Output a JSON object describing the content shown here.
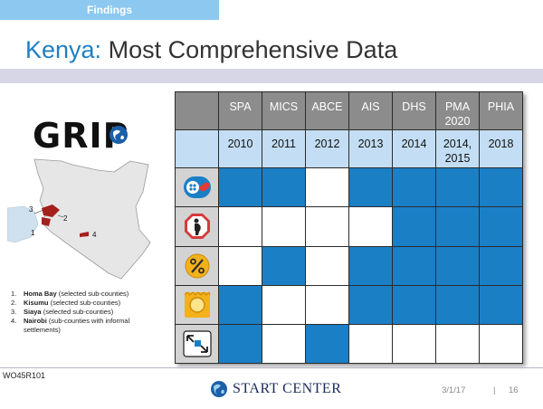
{
  "header": {
    "tag": "Findings",
    "title_country": "Kenya:",
    "title_rest": "Most Comprehensive Data"
  },
  "logo": {
    "text": "GRIP",
    "icon": "globe-icon"
  },
  "map": {
    "labels": [
      "3",
      "2",
      "1",
      "4"
    ]
  },
  "legend": [
    {
      "num": "1.",
      "bold": "Homa Bay",
      "rest": " (selected sub-counties)"
    },
    {
      "num": "2.",
      "bold": "Kisumu",
      "rest": " (selected sub-counties)"
    },
    {
      "num": "3.",
      "bold": "Siaya",
      "rest": " (selected sub-counties)"
    },
    {
      "num": "4.",
      "bold": "Nairobi",
      "rest": " (sub-counties with informal settlements)"
    }
  ],
  "table": {
    "surveys": [
      {
        "line1": "SPA",
        "line2": ""
      },
      {
        "line1": "MICS",
        "line2": ""
      },
      {
        "line1": "ABCE",
        "line2": ""
      },
      {
        "line1": "AIS",
        "line2": ""
      },
      {
        "line1": "DHS",
        "line2": ""
      },
      {
        "line1": "PMA",
        "line2": "2020"
      },
      {
        "line1": "PHIA",
        "line2": ""
      }
    ],
    "years": [
      {
        "line1": "2010",
        "line2": ""
      },
      {
        "line1": "2011",
        "line2": ""
      },
      {
        "line1": "2012",
        "line2": ""
      },
      {
        "line1": "2013",
        "line2": ""
      },
      {
        "line1": "2014",
        "line2": ""
      },
      {
        "line1": "2014,",
        "line2": "2015"
      },
      {
        "line1": "2018",
        "line2": ""
      }
    ],
    "rows": [
      {
        "icon": "pills-icon",
        "cells": [
          true,
          true,
          false,
          true,
          true,
          true,
          true
        ]
      },
      {
        "icon": "pregnancy-stop-icon",
        "cells": [
          false,
          false,
          false,
          false,
          true,
          true,
          true
        ]
      },
      {
        "icon": "percent-coin-icon",
        "cells": [
          false,
          true,
          false,
          true,
          true,
          true,
          true
        ]
      },
      {
        "icon": "condom-package-icon",
        "cells": [
          true,
          false,
          false,
          true,
          true,
          true,
          true
        ]
      },
      {
        "icon": "referral-arrows-icon",
        "cells": [
          true,
          false,
          true,
          false,
          false,
          false,
          false
        ]
      }
    ],
    "colors": {
      "on": "#1b7fc6",
      "off": "#ffffff",
      "header": "#8c8c8c",
      "year": "#c3def4"
    }
  },
  "footer": {
    "code": "WO45R101",
    "brand": "START CENTER",
    "date": "3/1/17",
    "separator": "|",
    "page": "16"
  }
}
